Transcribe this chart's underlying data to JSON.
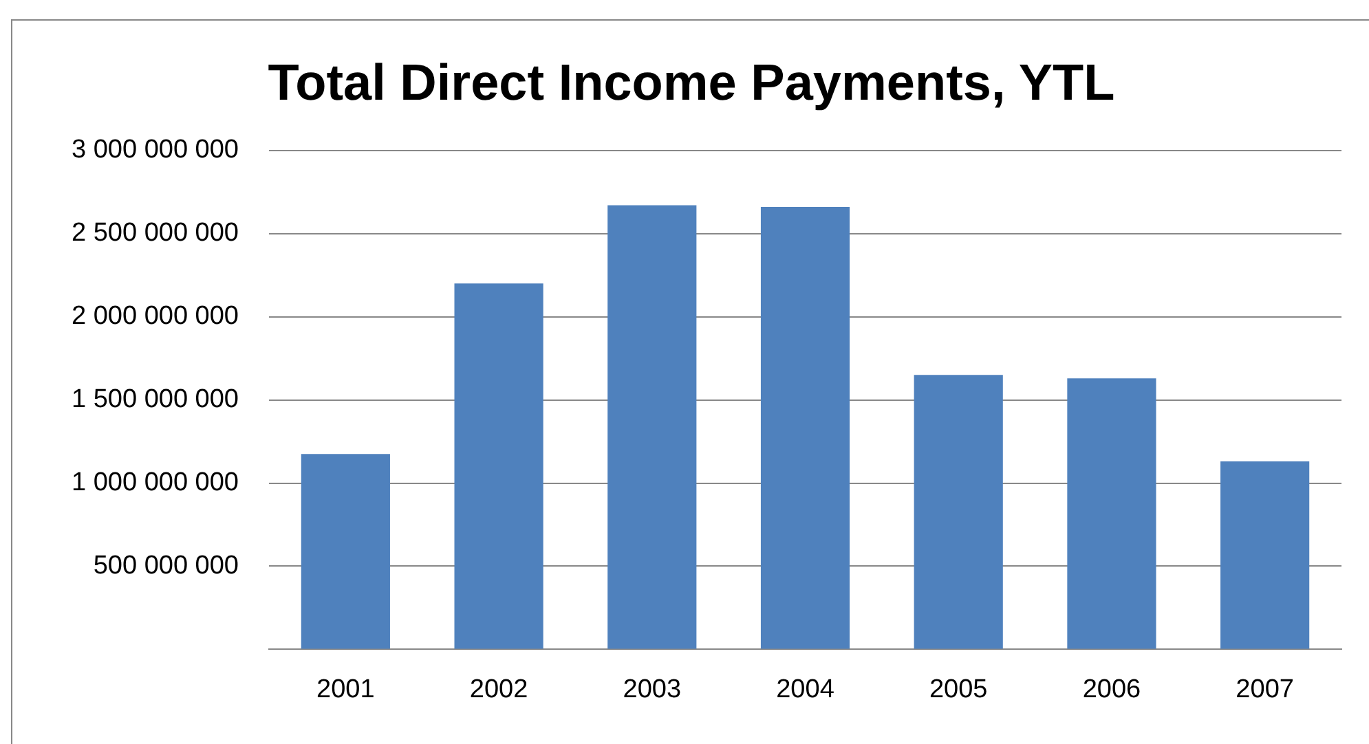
{
  "chart_data": {
    "type": "bar",
    "title": "Total Direct Income Payments, YTL",
    "categories": [
      "2001",
      "2002",
      "2003",
      "2004",
      "2005",
      "2006",
      "2007"
    ],
    "values": [
      1175000000,
      2200000000,
      2670000000,
      2660000000,
      1650000000,
      1630000000,
      1130000000
    ],
    "color": "#4f81bd",
    "ylim": [
      0,
      3000000000
    ],
    "yticks": [
      {
        "value": 0,
        "label": null
      },
      {
        "value": 500000000,
        "label": "500 000 000"
      },
      {
        "value": 1000000000,
        "label": "1 000 000 000"
      },
      {
        "value": 1500000000,
        "label": "1 500 000 000"
      },
      {
        "value": 2000000000,
        "label": "2 000 000 000"
      },
      {
        "value": 2500000000,
        "label": "2 500 000 000"
      },
      {
        "value": 3000000000,
        "label": "3 000 000 000"
      }
    ],
    "grid": "y",
    "legend": false
  }
}
